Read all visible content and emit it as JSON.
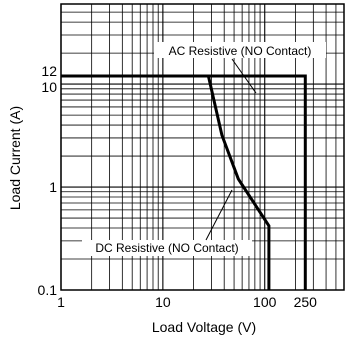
{
  "chart_data": {
    "type": "line",
    "title": "",
    "xlabel": "Load Voltage (V)",
    "ylabel": "Load Current (A)",
    "x_scale": "log",
    "y_scale": "log",
    "xlim": [
      1,
      600
    ],
    "ylim": [
      0.1,
      60
    ],
    "grid": true,
    "x_ticks": [
      {
        "value": 1,
        "label": "1"
      },
      {
        "value": 10,
        "label": "10"
      },
      {
        "value": 100,
        "label": "100"
      },
      {
        "value": 250,
        "label": "250"
      }
    ],
    "y_ticks": [
      {
        "value": 0.1,
        "label": "0.1"
      },
      {
        "value": 1,
        "label": "1"
      },
      {
        "value": 10,
        "label": "10"
      },
      {
        "value": 12,
        "label": "12"
      }
    ],
    "series": [
      {
        "name": "AC Resistive (NO Contact)",
        "x": [
          1,
          250,
          250
        ],
        "y": [
          12,
          12,
          0.1
        ]
      },
      {
        "name": "DC Resistive (NO Contact)",
        "x": [
          28,
          38,
          55,
          110,
          110
        ],
        "y": [
          12,
          3.2,
          1.2,
          0.42,
          0.1
        ]
      }
    ],
    "annotations": [
      {
        "text": "AC Resistive (NO Contact)",
        "target_series": 0
      },
      {
        "text": "DC Resistive (NO Contact)",
        "target_series": 1
      }
    ]
  }
}
